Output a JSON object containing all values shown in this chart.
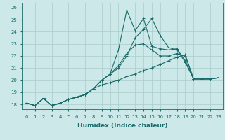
{
  "title": "",
  "xlabel": "Humidex (Indice chaleur)",
  "bg_color": "#cce8e8",
  "line_color": "#1a6b6b",
  "grid_color": "#aacccc",
  "xlim": [
    -0.5,
    23.5
  ],
  "ylim": [
    17.6,
    26.4
  ],
  "xticks": [
    0,
    1,
    2,
    3,
    4,
    5,
    6,
    7,
    8,
    9,
    10,
    11,
    12,
    13,
    14,
    15,
    16,
    17,
    18,
    19,
    20,
    21,
    22,
    23
  ],
  "yticks": [
    18,
    19,
    20,
    21,
    22,
    23,
    24,
    25,
    26
  ],
  "line_spiky_x": [
    0,
    1,
    2,
    3,
    4,
    5,
    6,
    7,
    8,
    9,
    10,
    11,
    12,
    13,
    14,
    15,
    16,
    17,
    18,
    19,
    20,
    21,
    22,
    23
  ],
  "line_spiky_y": [
    18.1,
    17.9,
    18.5,
    17.9,
    18.1,
    18.4,
    18.6,
    18.8,
    19.3,
    20.0,
    20.5,
    22.5,
    25.8,
    24.1,
    25.1,
    22.8,
    22.6,
    22.5,
    22.6,
    21.6,
    20.1,
    20.1,
    20.1,
    20.2
  ],
  "line_mid_x": [
    0,
    1,
    2,
    3,
    4,
    5,
    6,
    7,
    8,
    9,
    10,
    11,
    12,
    13,
    14,
    15,
    16,
    17,
    18,
    19,
    20,
    21,
    22,
    23
  ],
  "line_mid_y": [
    18.1,
    17.9,
    18.5,
    17.9,
    18.1,
    18.4,
    18.6,
    18.8,
    19.3,
    20.0,
    20.5,
    21.0,
    22.0,
    23.5,
    24.2,
    25.1,
    23.7,
    22.7,
    22.5,
    21.5,
    20.1,
    20.1,
    20.1,
    20.2
  ],
  "line_upper_x": [
    0,
    1,
    2,
    3,
    4,
    5,
    6,
    7,
    8,
    9,
    10,
    11,
    12,
    13,
    14,
    15,
    16,
    17,
    18,
    19,
    20,
    21,
    22,
    23
  ],
  "line_upper_y": [
    18.1,
    17.9,
    18.5,
    17.9,
    18.1,
    18.4,
    18.6,
    18.8,
    19.3,
    20.0,
    20.5,
    21.2,
    22.2,
    22.9,
    23.0,
    22.5,
    22.0,
    22.0,
    22.2,
    22.0,
    20.1,
    20.1,
    20.1,
    20.2
  ],
  "line_lower_x": [
    0,
    1,
    2,
    3,
    4,
    5,
    6,
    7,
    8,
    9,
    10,
    11,
    12,
    13,
    14,
    15,
    16,
    17,
    18,
    19,
    20,
    21,
    22,
    23
  ],
  "line_lower_y": [
    18.1,
    17.9,
    18.5,
    17.9,
    18.1,
    18.4,
    18.6,
    18.8,
    19.3,
    19.6,
    19.8,
    20.0,
    20.3,
    20.5,
    20.8,
    21.0,
    21.3,
    21.6,
    21.9,
    22.1,
    20.1,
    20.1,
    20.1,
    20.2
  ]
}
